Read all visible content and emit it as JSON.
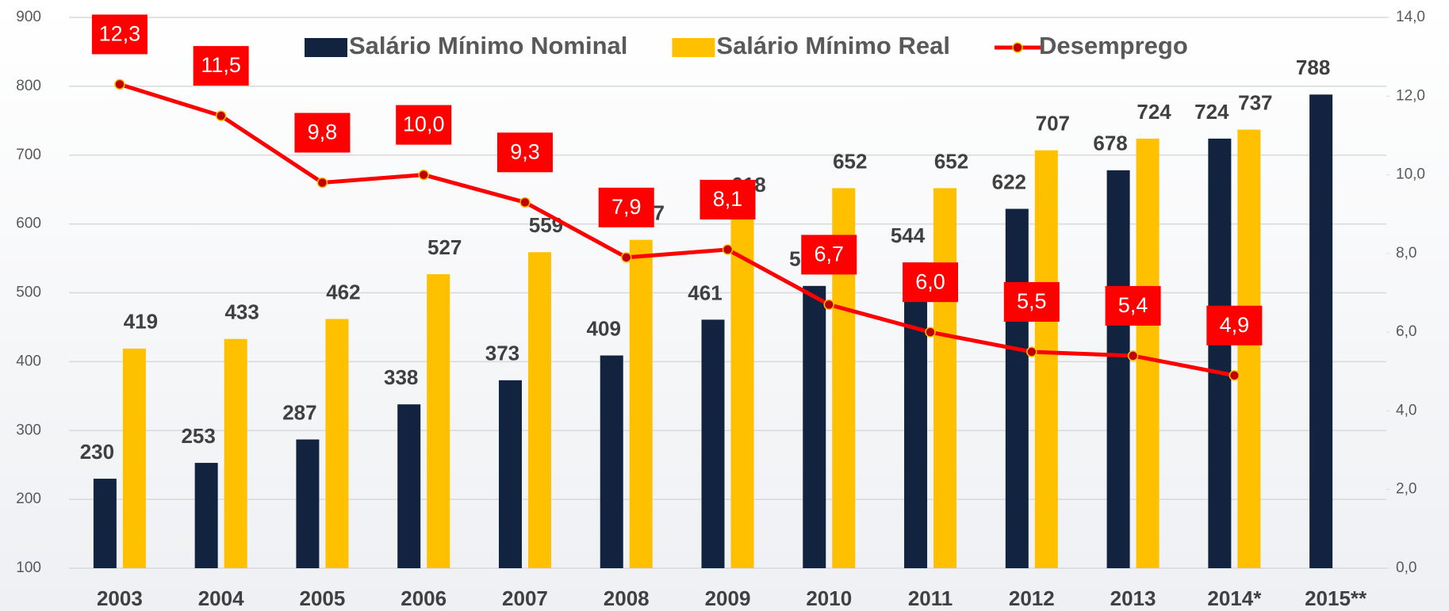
{
  "chart_data": {
    "type": "bar_line",
    "categories": [
      "2003",
      "2004",
      "2005",
      "2006",
      "2007",
      "2008",
      "2009",
      "2010",
      "2011",
      "2012",
      "2013",
      "2014*",
      "2015**"
    ],
    "series": [
      {
        "name": "Salário Mínimo Nominal",
        "color": "#12233f",
        "type": "bar",
        "values": [
          230,
          253,
          287,
          338,
          373,
          409,
          461,
          510,
          544,
          622,
          678,
          724,
          788
        ]
      },
      {
        "name": "Salário Mínimo Real",
        "color": "#ffc000",
        "type": "bar",
        "values": [
          419,
          433,
          462,
          527,
          559,
          577,
          618,
          652,
          652,
          707,
          724,
          737,
          null
        ]
      },
      {
        "name": "Desemprego",
        "color": "#ff0000",
        "type": "line",
        "axis": "y2",
        "values": [
          12.3,
          11.5,
          9.8,
          10.0,
          9.3,
          7.9,
          8.1,
          6.7,
          6.0,
          5.5,
          5.4,
          4.9,
          null
        ],
        "value_labels": [
          "12,3",
          "11,5",
          "9,8",
          "10,0",
          "9,3",
          "7,9",
          "8,1",
          "6,7",
          "6,0",
          "5,5",
          "5,4",
          "4,9",
          null
        ]
      }
    ],
    "ylim": [
      100,
      900
    ],
    "yticks": [
      100,
      200,
      300,
      400,
      500,
      600,
      700,
      800,
      900
    ],
    "y2lim": [
      0,
      14
    ],
    "y2ticks": [
      {
        "value": 0,
        "label": "0,0"
      },
      {
        "value": 2,
        "label": "2,0"
      },
      {
        "value": 4,
        "label": "4,0"
      },
      {
        "value": 6,
        "label": "6,0"
      },
      {
        "value": 8,
        "label": "8,0"
      },
      {
        "value": 10,
        "label": "10,0"
      },
      {
        "value": 12,
        "label": "12,0"
      },
      {
        "value": 14,
        "label": "14,0"
      }
    ],
    "grid": true,
    "legend": "top"
  }
}
